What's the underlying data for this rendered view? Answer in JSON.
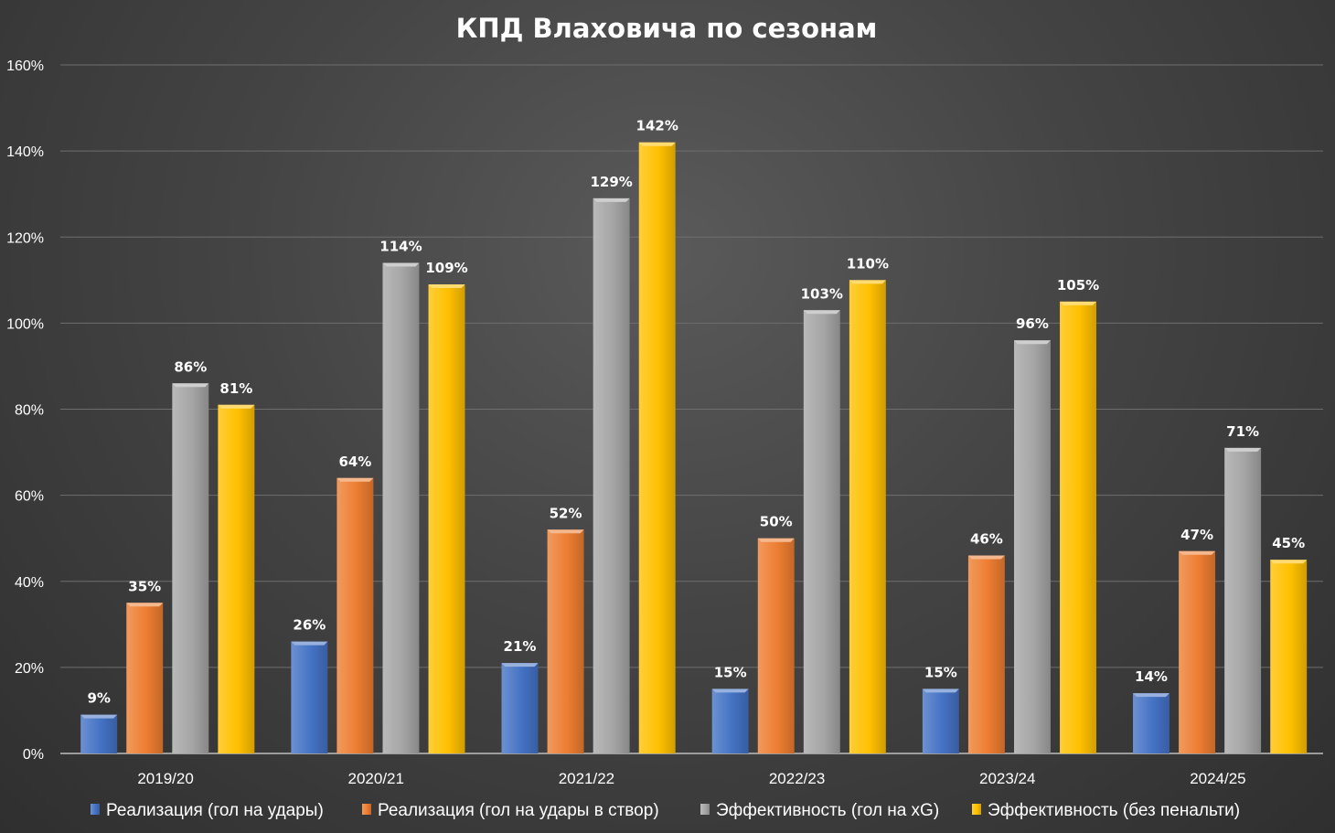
{
  "chart_data": {
    "type": "bar",
    "title": "КПД Влаховича по сезонам",
    "categories": [
      "2019/20",
      "2020/21",
      "2021/22",
      "2022/23",
      "2023/24",
      "2024/25"
    ],
    "series": [
      {
        "name": "Реализация (гол на удары)",
        "values": [
          9,
          26,
          21,
          15,
          15,
          14
        ],
        "color": "#4472C4"
      },
      {
        "name": "Реализация (гол на удары в створ)",
        "values": [
          35,
          64,
          52,
          50,
          46,
          47
        ],
        "color": "#ED7D31"
      },
      {
        "name": "Эффективность (гол на xG)",
        "values": [
          86,
          114,
          129,
          103,
          96,
          71
        ],
        "color": "#A5A5A5"
      },
      {
        "name": "Эффективность (без пенальти)",
        "values": [
          81,
          109,
          142,
          110,
          105,
          45
        ],
        "color": "#FFC000"
      }
    ],
    "value_format": "percent",
    "ylim": [
      0,
      160
    ],
    "y_ticks": [
      0,
      20,
      40,
      60,
      80,
      100,
      120,
      140,
      160
    ],
    "grid": true,
    "legend_position": "bottom",
    "xlabel": "",
    "ylabel": ""
  }
}
